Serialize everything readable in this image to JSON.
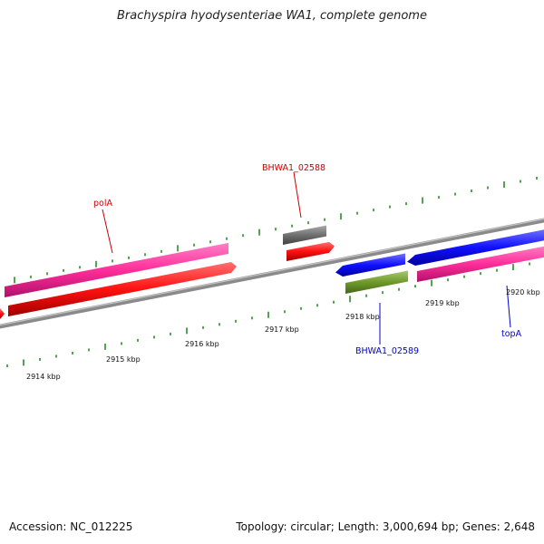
{
  "header": {
    "title": "Brachyspira hyodysenteriae WA1, complete genome"
  },
  "footer": {
    "accession": "Accession: NC_012225",
    "stats": "Topology: circular; Length: 3,000,694 bp; Genes: 2,648"
  },
  "colors": {
    "backbone": "#8a8a8a",
    "tick": "#2a8a2a",
    "forward_label": "#cc0000",
    "reverse_label": "#0000cc"
  },
  "scale_labels": [
    "2914 kbp",
    "2915 kbp",
    "2916 kbp",
    "2917 kbp",
    "2918 kbp",
    "2919 kbp",
    "2920 kbp"
  ],
  "genes": [
    {
      "name": "polA",
      "strand": "forward",
      "color": "#ff2e9a"
    },
    {
      "name": "",
      "strand": "forward",
      "color": "#ff1010"
    },
    {
      "name": "BHWA1_02588",
      "strand": "forward",
      "color": "#707070"
    },
    {
      "name": "",
      "strand": "forward",
      "color": "#ff1010"
    },
    {
      "name": "",
      "strand": "reverse",
      "color": "#1010ff"
    },
    {
      "name": "BHWA1_02589",
      "strand": "reverse",
      "color": "#6f9a2a"
    },
    {
      "name": "topA",
      "strand": "reverse",
      "color": "#1010ff"
    },
    {
      "name": "",
      "strand": "reverse",
      "color": "#ff2e9a"
    }
  ]
}
